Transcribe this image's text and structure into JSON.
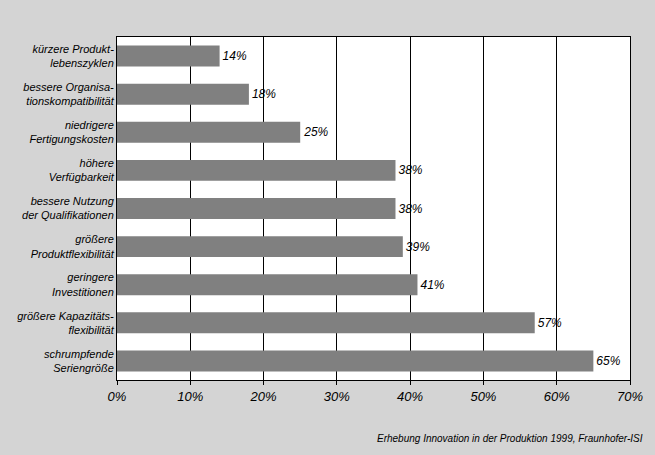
{
  "chart_data": {
    "type": "bar",
    "orientation": "horizontal",
    "categories": [
      "kürzere Produkt-\nlebenszyklen",
      "bessere Organisa-\ntionskompatibilität",
      "niedrigere\nFertigungskosten",
      "höhere\nVerfügbarkeit",
      "bessere Nutzung\nder Qualifikationen",
      "größere\nProduktflexibilität",
      "geringere\nInvestitionen",
      "größere Kapazitäts-\nflexibilität",
      "schrumpfende\nSeriengröße"
    ],
    "values": [
      14,
      18,
      25,
      38,
      38,
      39,
      41,
      57,
      65
    ],
    "value_labels": [
      "14%",
      "18%",
      "25%",
      "38%",
      "38%",
      "39%",
      "41%",
      "57%",
      "65%"
    ],
    "data_labels": true,
    "color": "#808080",
    "xlim": [
      0,
      70
    ],
    "xticks": [
      {
        "value": 0,
        "label": "0%"
      },
      {
        "value": 10,
        "label": "10%"
      },
      {
        "value": 20,
        "label": "20%"
      },
      {
        "value": 30,
        "label": "30%"
      },
      {
        "value": 40,
        "label": "40%"
      },
      {
        "value": 50,
        "label": "50%"
      },
      {
        "value": 60,
        "label": "60%"
      },
      {
        "value": 70,
        "label": "70%"
      }
    ],
    "grid": true,
    "annotations": [
      "Erhebung Innovation in der Produktion 1999, Fraunhofer-ISI"
    ]
  }
}
